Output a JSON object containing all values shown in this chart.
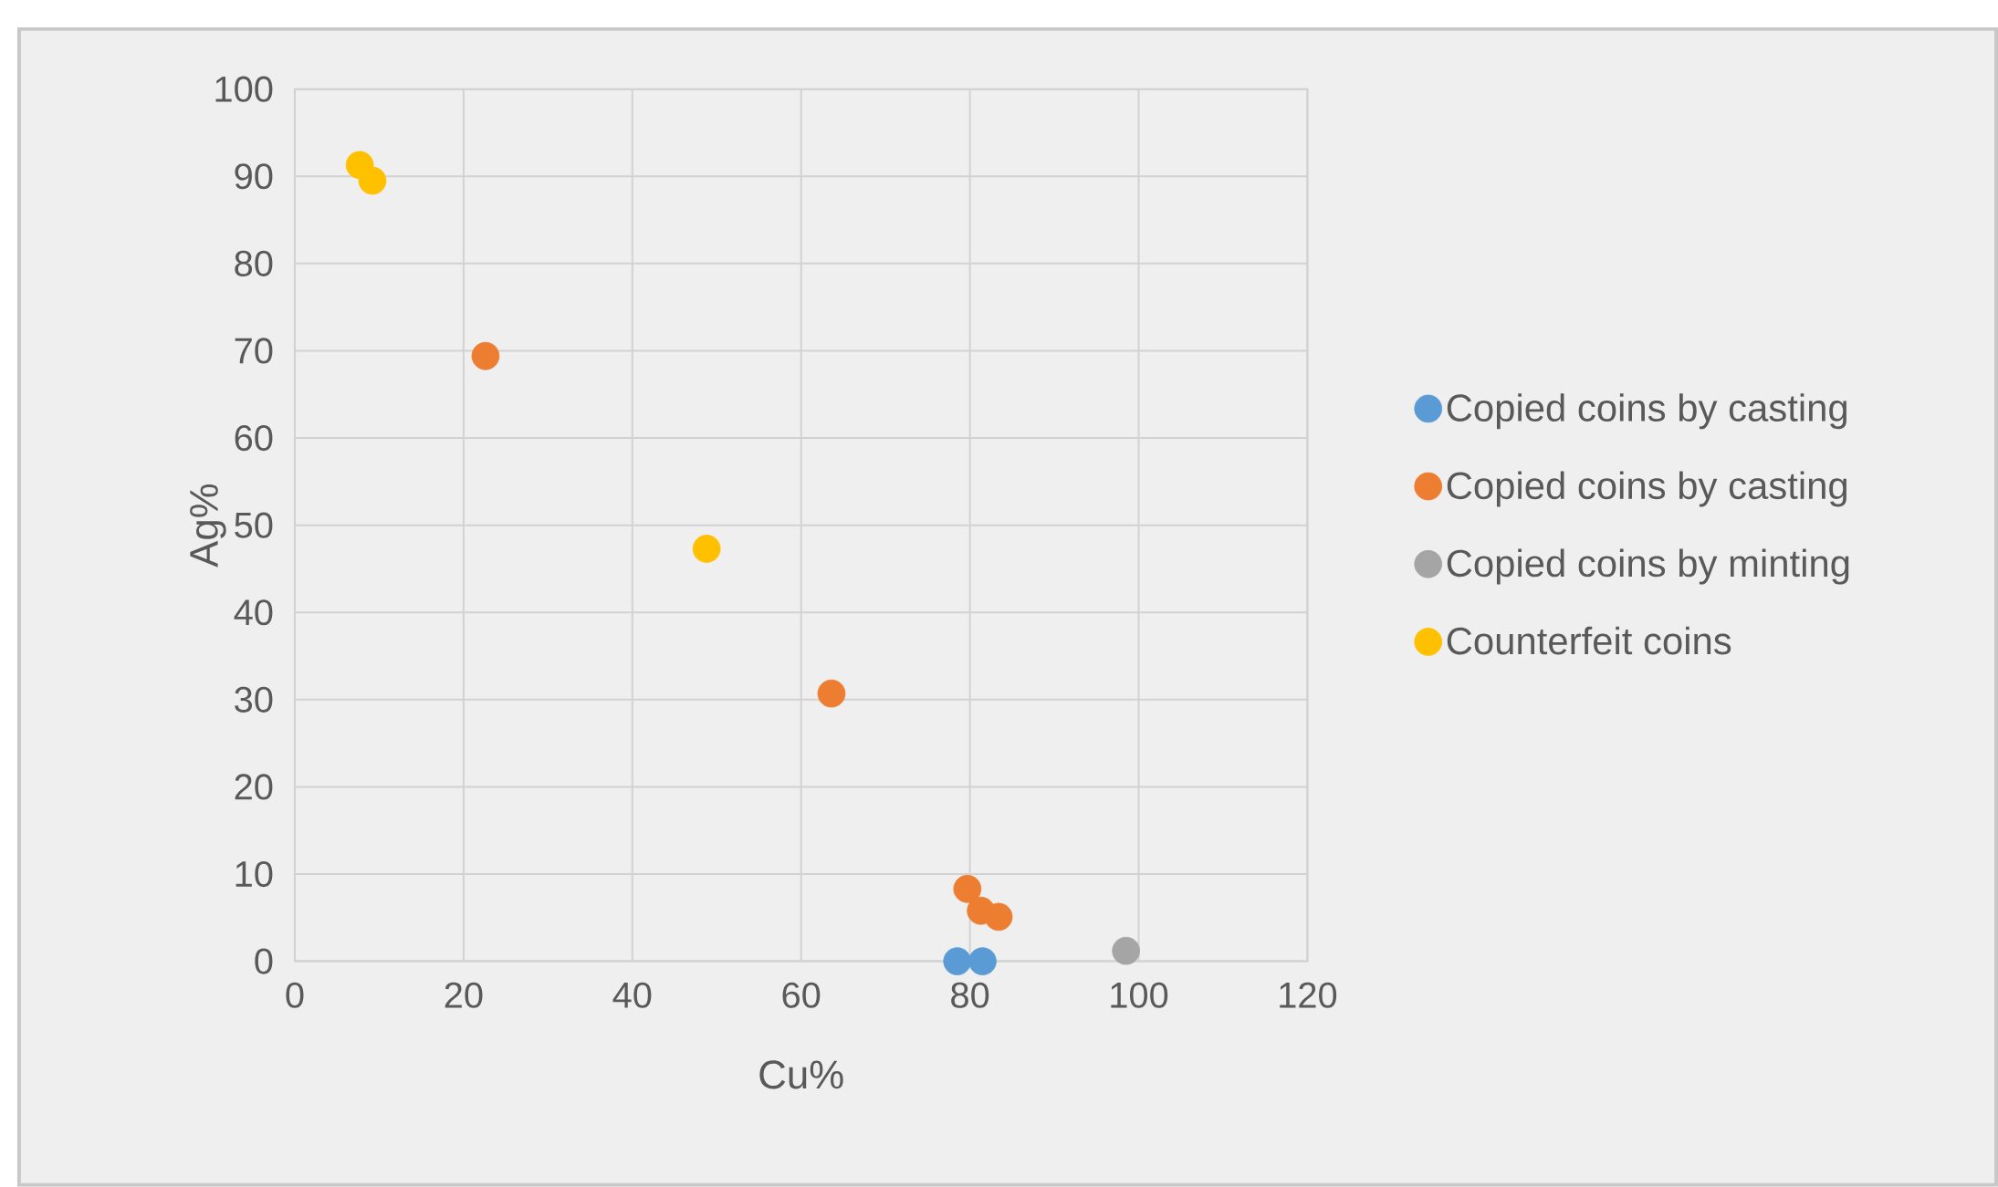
{
  "chart_data": {
    "type": "scatter",
    "xlabel": "Cu%",
    "ylabel": "Ag%",
    "xlim": [
      0,
      120
    ],
    "ylim": [
      0,
      100
    ],
    "xticks": [
      0,
      20,
      40,
      60,
      80,
      100,
      120
    ],
    "yticks": [
      0,
      10,
      20,
      30,
      40,
      50,
      60,
      70,
      80,
      90,
      100
    ],
    "grid": true,
    "legend": "right",
    "marker": "circle",
    "series": [
      {
        "name": "Copied coins by casting",
        "color": "#5b9bd5",
        "x": [
          78.5,
          81.5
        ],
        "values": [
          0,
          0
        ]
      },
      {
        "name": "Copied coins by casting",
        "color": "#ed7d31",
        "x": [
          22.6,
          63.6,
          79.7,
          81.3,
          83.4
        ],
        "values": [
          69.4,
          30.7,
          8.3,
          5.8,
          5.1
        ]
      },
      {
        "name": "Copied coins by minting",
        "color": "#a5a5a5",
        "x": [
          98.5
        ],
        "values": [
          1.2
        ]
      },
      {
        "name": "Counterfeit coins",
        "color": "#ffc000",
        "x": [
          7.7,
          9.2,
          48.8
        ],
        "values": [
          91.3,
          89.5,
          47.3
        ]
      }
    ]
  }
}
